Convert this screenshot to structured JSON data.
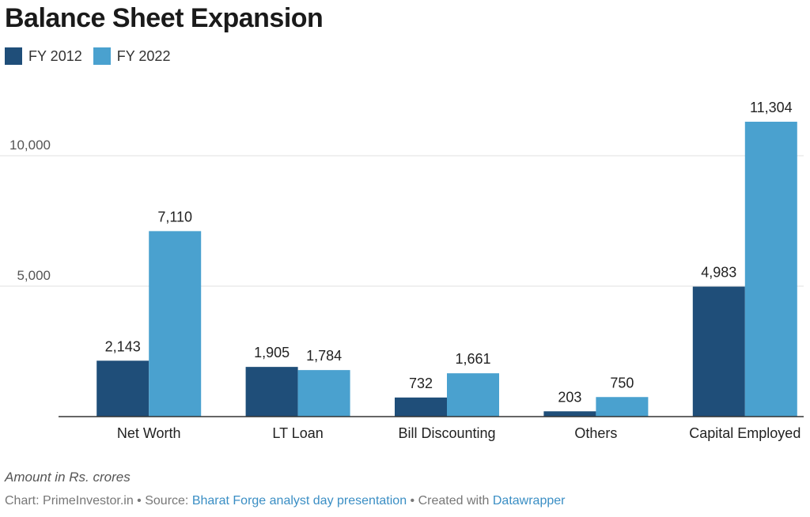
{
  "title": "Balance Sheet Expansion",
  "colors": {
    "fy2012": "#1f4e79",
    "fy2022": "#4aa1cf",
    "grid": "#e0e0e0",
    "baseline": "#333333"
  },
  "chart_data": {
    "type": "bar",
    "title": "Balance Sheet Expansion",
    "categories": [
      "Net Worth",
      "LT Loan",
      "Bill Discounting",
      "Others",
      "Capital Employed"
    ],
    "series": [
      {
        "name": "FY 2012",
        "values": [
          2143,
          1905,
          732,
          203,
          4983
        ],
        "labels": [
          "2,143",
          "1,905",
          "732",
          "203",
          "4,983"
        ]
      },
      {
        "name": "FY 2022",
        "values": [
          7110,
          1784,
          1661,
          750,
          11304
        ],
        "labels": [
          "7,110",
          "1,784",
          "1,661",
          "750",
          "11,304"
        ]
      }
    ],
    "y_ticks": [
      5000,
      10000
    ],
    "y_tick_labels": [
      "5,000",
      "10,000"
    ],
    "ylim": [
      0,
      12000
    ],
    "grid": true,
    "legend": "top-left"
  },
  "footer": {
    "note": "Amount in Rs. crores",
    "chart_prefix": "Chart: PrimeInvestor.in • Source: ",
    "source_link": "Bharat Forge analyst day presentation",
    "created_prefix": " • Created with ",
    "created_link": "Datawrapper"
  }
}
